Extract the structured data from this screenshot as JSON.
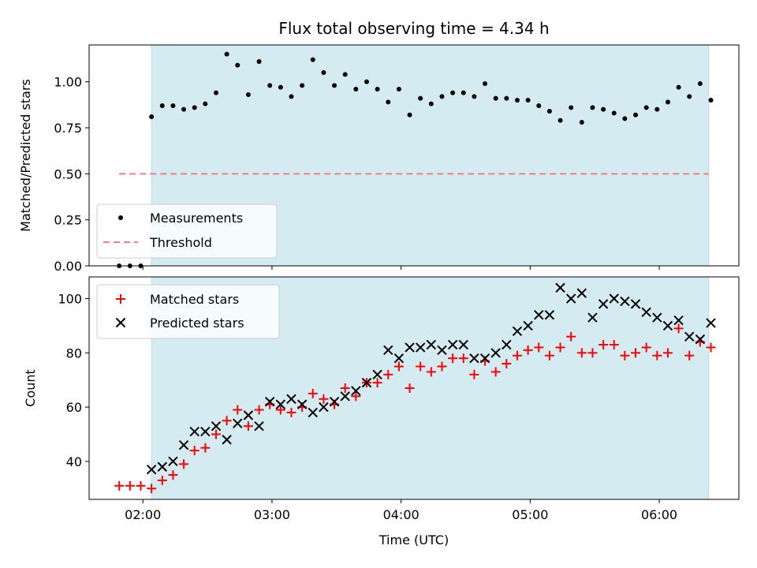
{
  "chart_data": [
    {
      "type": "scatter",
      "title": "Flux total observing time = 4.34 h",
      "xlabel": "",
      "ylabel": "Matched/Predicted stars",
      "xlim": [
        "01:35",
        "06:37"
      ],
      "ylim": [
        0,
        1.2
      ],
      "yticks": [
        "0.00",
        "0.25",
        "0.50",
        "0.75",
        "1.00"
      ],
      "ytick_values": [
        0,
        0.25,
        0.5,
        0.75,
        1.0
      ],
      "shaded_span": [
        "02:04",
        "06:23"
      ],
      "shaded_color": "#d3ebf1",
      "legend_position": "lower-left",
      "series": [
        {
          "name": "Measurements",
          "marker": "dot",
          "color": "#000000",
          "points": [
            [
              "01:49",
              0
            ],
            [
              "01:54",
              0
            ],
            [
              "01:59",
              0
            ],
            [
              "02:04",
              0.81
            ],
            [
              "02:09",
              0.87
            ],
            [
              "02:14",
              0.87
            ],
            [
              "02:19",
              0.85
            ],
            [
              "02:24",
              0.86
            ],
            [
              "02:29",
              0.88
            ],
            [
              "02:34",
              0.94
            ],
            [
              "02:39",
              1.15
            ],
            [
              "02:44",
              1.09
            ],
            [
              "02:49",
              0.93
            ],
            [
              "02:54",
              1.11
            ],
            [
              "02:59",
              0.98
            ],
            [
              "03:04",
              0.97
            ],
            [
              "03:09",
              0.92
            ],
            [
              "03:14",
              0.98
            ],
            [
              "03:19",
              1.12
            ],
            [
              "03:24",
              1.05
            ],
            [
              "03:29",
              0.98
            ],
            [
              "03:34",
              1.04
            ],
            [
              "03:39",
              0.96
            ],
            [
              "03:44",
              1.0
            ],
            [
              "03:49",
              0.96
            ],
            [
              "03:54",
              0.89
            ],
            [
              "03:59",
              0.96
            ],
            [
              "04:04",
              0.82
            ],
            [
              "04:09",
              0.91
            ],
            [
              "04:14",
              0.88
            ],
            [
              "04:19",
              0.92
            ],
            [
              "04:24",
              0.94
            ],
            [
              "04:29",
              0.94
            ],
            [
              "04:34",
              0.92
            ],
            [
              "04:39",
              0.99
            ],
            [
              "04:44",
              0.91
            ],
            [
              "04:49",
              0.91
            ],
            [
              "04:54",
              0.9
            ],
            [
              "04:59",
              0.9
            ],
            [
              "05:04",
              0.87
            ],
            [
              "05:09",
              0.84
            ],
            [
              "05:14",
              0.79
            ],
            [
              "05:19",
              0.86
            ],
            [
              "05:24",
              0.78
            ],
            [
              "05:29",
              0.86
            ],
            [
              "05:34",
              0.85
            ],
            [
              "05:39",
              0.83
            ],
            [
              "05:44",
              0.8
            ],
            [
              "05:49",
              0.82
            ],
            [
              "05:54",
              0.86
            ],
            [
              "05:59",
              0.85
            ],
            [
              "06:04",
              0.89
            ],
            [
              "06:09",
              0.97
            ],
            [
              "06:14",
              0.92
            ],
            [
              "06:19",
              0.99
            ],
            [
              "06:24",
              0.9
            ]
          ]
        },
        {
          "name": "Threshold",
          "style": "dashed-line",
          "color": "#f08080",
          "points": [
            [
              "01:49",
              0.5
            ],
            [
              "06:23",
              0.5
            ]
          ]
        }
      ]
    },
    {
      "type": "scatter",
      "title": "",
      "xlabel": "Time (UTC)",
      "ylabel": "Count",
      "xlim": [
        "01:35",
        "06:37"
      ],
      "xticks": [
        "02:00",
        "03:00",
        "04:00",
        "05:00",
        "06:00"
      ],
      "ylim": [
        26,
        108
      ],
      "yticks": [
        "40",
        "60",
        "80",
        "100"
      ],
      "ytick_values": [
        40,
        60,
        80,
        100
      ],
      "shaded_span": [
        "02:04",
        "06:23"
      ],
      "shaded_color": "#d3ebf1",
      "legend_position": "upper-left",
      "series": [
        {
          "name": "Matched stars",
          "marker": "plus",
          "color": "#ff0000",
          "points": [
            [
              "01:49",
              31
            ],
            [
              "01:54",
              31
            ],
            [
              "01:59",
              31
            ],
            [
              "02:04",
              30
            ],
            [
              "02:09",
              33
            ],
            [
              "02:14",
              35
            ],
            [
              "02:19",
              39
            ],
            [
              "02:24",
              44
            ],
            [
              "02:29",
              45
            ],
            [
              "02:34",
              50
            ],
            [
              "02:39",
              55
            ],
            [
              "02:44",
              59
            ],
            [
              "02:49",
              53
            ],
            [
              "02:54",
              59
            ],
            [
              "02:59",
              61
            ],
            [
              "03:04",
              59
            ],
            [
              "03:09",
              58
            ],
            [
              "03:14",
              60
            ],
            [
              "03:19",
              65
            ],
            [
              "03:24",
              63
            ],
            [
              "03:29",
              61
            ],
            [
              "03:34",
              67
            ],
            [
              "03:39",
              64
            ],
            [
              "03:44",
              69
            ],
            [
              "03:49",
              69
            ],
            [
              "03:54",
              72
            ],
            [
              "03:59",
              75
            ],
            [
              "04:04",
              67
            ],
            [
              "04:09",
              75
            ],
            [
              "04:14",
              73
            ],
            [
              "04:19",
              75
            ],
            [
              "04:24",
              78
            ],
            [
              "04:29",
              78
            ],
            [
              "04:34",
              72
            ],
            [
              "04:39",
              77
            ],
            [
              "04:44",
              73
            ],
            [
              "04:49",
              76
            ],
            [
              "04:54",
              79
            ],
            [
              "04:59",
              81
            ],
            [
              "05:04",
              82
            ],
            [
              "05:09",
              79
            ],
            [
              "05:14",
              82
            ],
            [
              "05:19",
              86
            ],
            [
              "05:24",
              80
            ],
            [
              "05:29",
              80
            ],
            [
              "05:34",
              83
            ],
            [
              "05:39",
              83
            ],
            [
              "05:44",
              79
            ],
            [
              "05:49",
              80
            ],
            [
              "05:54",
              82
            ],
            [
              "05:59",
              79
            ],
            [
              "06:04",
              80
            ],
            [
              "06:09",
              89
            ],
            [
              "06:14",
              79
            ],
            [
              "06:19",
              84
            ],
            [
              "06:24",
              82
            ]
          ]
        },
        {
          "name": "Predicted stars",
          "marker": "x",
          "color": "#000000",
          "points": [
            [
              "02:04",
              37
            ],
            [
              "02:09",
              38
            ],
            [
              "02:14",
              40
            ],
            [
              "02:19",
              46
            ],
            [
              "02:24",
              51
            ],
            [
              "02:29",
              51
            ],
            [
              "02:34",
              53
            ],
            [
              "02:39",
              48
            ],
            [
              "02:44",
              54
            ],
            [
              "02:49",
              57
            ],
            [
              "02:54",
              53
            ],
            [
              "02:59",
              62
            ],
            [
              "03:04",
              61
            ],
            [
              "03:09",
              63
            ],
            [
              "03:14",
              61
            ],
            [
              "03:19",
              58
            ],
            [
              "03:24",
              60
            ],
            [
              "03:29",
              62
            ],
            [
              "03:34",
              64
            ],
            [
              "03:39",
              66
            ],
            [
              "03:44",
              69
            ],
            [
              "03:49",
              72
            ],
            [
              "03:54",
              81
            ],
            [
              "03:59",
              78
            ],
            [
              "04:04",
              82
            ],
            [
              "04:09",
              82
            ],
            [
              "04:14",
              83
            ],
            [
              "04:19",
              81
            ],
            [
              "04:24",
              83
            ],
            [
              "04:29",
              83
            ],
            [
              "04:34",
              78
            ],
            [
              "04:39",
              78
            ],
            [
              "04:44",
              80
            ],
            [
              "04:49",
              83
            ],
            [
              "04:54",
              88
            ],
            [
              "04:59",
              90
            ],
            [
              "05:04",
              94
            ],
            [
              "05:09",
              94
            ],
            [
              "05:14",
              104
            ],
            [
              "05:19",
              100
            ],
            [
              "05:24",
              102
            ],
            [
              "05:29",
              93
            ],
            [
              "05:34",
              98
            ],
            [
              "05:39",
              100
            ],
            [
              "05:44",
              99
            ],
            [
              "05:49",
              98
            ],
            [
              "05:54",
              95
            ],
            [
              "05:59",
              93
            ],
            [
              "06:04",
              90
            ],
            [
              "06:09",
              92
            ],
            [
              "06:14",
              86
            ],
            [
              "06:19",
              85
            ],
            [
              "06:24",
              91
            ]
          ]
        }
      ]
    }
  ]
}
